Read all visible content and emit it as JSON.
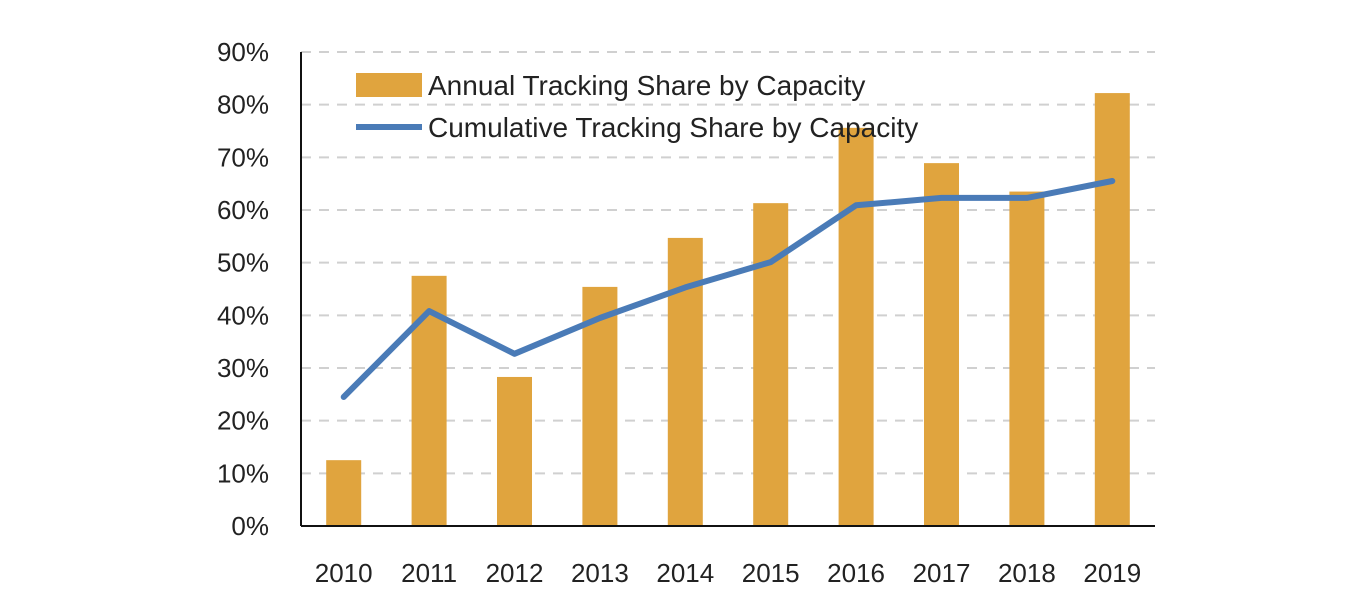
{
  "chart_data": {
    "type": "bar",
    "categories": [
      "2010",
      "2011",
      "2012",
      "2013",
      "2014",
      "2015",
      "2016",
      "2017",
      "2018",
      "2019"
    ],
    "series": [
      {
        "name": "Annual Tracking Share by Capacity",
        "type": "bar",
        "color": "#E0A43E",
        "values": [
          12.5,
          47.5,
          28.3,
          45.4,
          54.7,
          61.3,
          75.6,
          68.9,
          63.5,
          82.2
        ]
      },
      {
        "name": "Cumulative Tracking Share by Capacity",
        "type": "line",
        "color": "#4A7BB7",
        "values": [
          24.5,
          40.8,
          32.7,
          39.5,
          45.3,
          50.1,
          60.9,
          62.3,
          62.3,
          65.5
        ]
      }
    ],
    "y_tick_labels": [
      "0%",
      "10%",
      "20%",
      "30%",
      "40%",
      "50%",
      "60%",
      "70%",
      "80%",
      "90%"
    ],
    "ylim": [
      0,
      90
    ],
    "y_unit": "%",
    "grid": "horizontal dashed",
    "legend_position": "top-left"
  }
}
